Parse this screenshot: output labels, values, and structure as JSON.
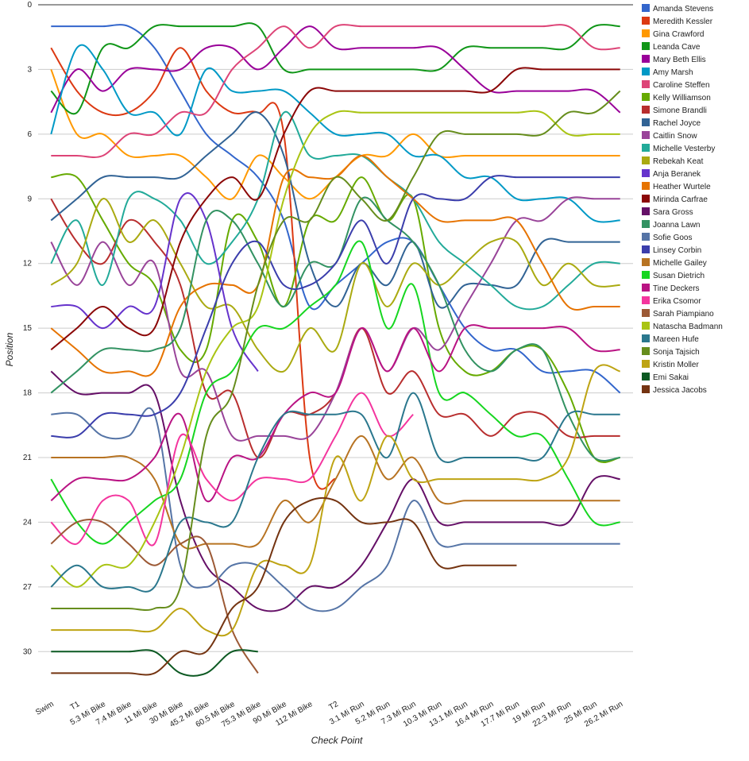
{
  "chart_data": {
    "type": "line",
    "smooth": true,
    "reversed_y": true,
    "grid": true,
    "legend": "right",
    "x_label": "Check Point",
    "y_label": "Position",
    "categories": [
      "Swim",
      "T1",
      "5.3 Mi Bike",
      "7.4 Mi Bike",
      "11 Mi Bike",
      "30 Mi Bike",
      "45.2 Mi Bike",
      "60.5 Mi Bike",
      "75.3 Mi Bike",
      "90 Mi Bike",
      "112 Mi Bike",
      "T2",
      "3.1 Mi Run",
      "5.2 Mi Run",
      "7.3 Mi Run",
      "10.3 Mi Run",
      "13.1 Mi Run",
      "16.4 Mi Run",
      "17.7 Mi Run",
      "19 Mi Run",
      "22.3 Mi Run",
      "25 Mi Run",
      "26.2 Mi Run"
    ],
    "ylim": [
      0,
      31.5
    ],
    "yticks": [
      0,
      3,
      6,
      9,
      12,
      15,
      18,
      21,
      24,
      27,
      30
    ],
    "series": [
      {
        "name": "Amanda Stevens",
        "color": "#3366cc",
        "values": [
          1,
          1,
          1,
          1,
          2,
          4,
          6,
          7,
          8,
          10,
          14,
          13,
          12,
          11,
          11,
          13,
          15,
          16,
          16,
          17,
          17,
          17,
          18
        ]
      },
      {
        "name": "Meredith Kessler",
        "color": "#dc3912",
        "values": [
          2,
          4,
          5,
          5,
          4,
          2,
          4,
          5,
          5,
          6,
          21,
          22,
          null,
          null,
          null,
          null,
          null,
          null,
          null,
          null,
          null,
          null,
          null
        ]
      },
      {
        "name": "Gina Crawford",
        "color": "#ff9900",
        "values": [
          3,
          6,
          6,
          7,
          7,
          7,
          8,
          9,
          7,
          8,
          9,
          8,
          7,
          7,
          6,
          7,
          7,
          7,
          7,
          7,
          7,
          7,
          7
        ]
      },
      {
        "name": "Leanda Cave",
        "color": "#109618",
        "values": [
          4,
          5,
          2,
          2,
          1,
          1,
          1,
          1,
          1,
          3,
          3,
          3,
          3,
          3,
          3,
          3,
          2,
          2,
          2,
          2,
          2,
          1,
          1
        ]
      },
      {
        "name": "Mary Beth Ellis",
        "color": "#990099",
        "values": [
          5,
          3,
          4,
          3,
          3,
          3,
          2,
          2,
          3,
          2,
          1,
          2,
          2,
          2,
          2,
          2,
          3,
          4,
          4,
          4,
          4,
          4,
          5
        ]
      },
      {
        "name": "Amy Marsh",
        "color": "#0099c6",
        "values": [
          6,
          2,
          3,
          5,
          5,
          6,
          3,
          4,
          4,
          4,
          5,
          6,
          6,
          6,
          7,
          7,
          8,
          8,
          9,
          9,
          9,
          10,
          10
        ]
      },
      {
        "name": "Caroline Steffen",
        "color": "#dd4477",
        "values": [
          7,
          7,
          7,
          6,
          6,
          5,
          5,
          3,
          2,
          1,
          2,
          1,
          1,
          1,
          1,
          1,
          1,
          1,
          1,
          1,
          1,
          2,
          2
        ]
      },
      {
        "name": "Kelly Williamson",
        "color": "#66aa00",
        "values": [
          8,
          8,
          10,
          12,
          13,
          16,
          16,
          10,
          11,
          14,
          10,
          10,
          8,
          10,
          9,
          15,
          17,
          17,
          16,
          16,
          18,
          21,
          21
        ]
      },
      {
        "name": "Simone Brandli",
        "color": "#b82e2e",
        "values": [
          9,
          11,
          12,
          10,
          11,
          13,
          18,
          18,
          21,
          19,
          19,
          18,
          15,
          18,
          17,
          19,
          19,
          20,
          19,
          19,
          20,
          20,
          20
        ]
      },
      {
        "name": "Rachel Joyce",
        "color": "#316395",
        "values": [
          10,
          9,
          8,
          8,
          8,
          8,
          7,
          6,
          5,
          7,
          12,
          14,
          12,
          13,
          11,
          14,
          13,
          13,
          13,
          11,
          11,
          11,
          11
        ]
      },
      {
        "name": "Caitlin Snow",
        "color": "#994499",
        "values": [
          11,
          13,
          11,
          13,
          12,
          17,
          17,
          20,
          20,
          20,
          20,
          18,
          15,
          17,
          15,
          16,
          14,
          12,
          10,
          10,
          9,
          9,
          9
        ]
      },
      {
        "name": "Michelle Vesterby",
        "color": "#22aa99",
        "values": [
          12,
          10,
          13,
          9,
          9,
          10,
          12,
          11,
          9,
          5,
          7,
          7,
          7,
          8,
          9,
          11,
          12,
          13,
          14,
          14,
          13,
          12,
          12
        ]
      },
      {
        "name": "Rebekah Keat",
        "color": "#aaaa11",
        "values": [
          13,
          12,
          9,
          11,
          10,
          12,
          14,
          14,
          16,
          17,
          15,
          16,
          12,
          14,
          12,
          13,
          12,
          11,
          11,
          13,
          12,
          13,
          13
        ]
      },
      {
        "name": "Anja Beranek",
        "color": "#6633cc",
        "values": [
          14,
          14,
          15,
          14,
          14,
          9,
          10,
          15,
          17,
          null,
          null,
          null,
          null,
          null,
          null,
          null,
          null,
          null,
          null,
          null,
          null,
          null,
          null
        ]
      },
      {
        "name": "Heather Wurtele",
        "color": "#e67300",
        "values": [
          15,
          16,
          17,
          17,
          17,
          14,
          13,
          13,
          13,
          8,
          8,
          8,
          7,
          8,
          9,
          10,
          10,
          10,
          10,
          12,
          14,
          14,
          14
        ]
      },
      {
        "name": "Mirinda Carfrae",
        "color": "#8b0707",
        "values": [
          16,
          15,
          14,
          15,
          15,
          11,
          9,
          8,
          9,
          6,
          4,
          4,
          4,
          4,
          4,
          4,
          4,
          4,
          3,
          3,
          3,
          3,
          3
        ]
      },
      {
        "name": "Sara Gross",
        "color": "#651067",
        "values": [
          17,
          18,
          18,
          18,
          18,
          23,
          26,
          27,
          28,
          28,
          27,
          27,
          26,
          24,
          22,
          24,
          24,
          24,
          24,
          24,
          24,
          22,
          22
        ]
      },
      {
        "name": "Joanna Lawn",
        "color": "#329262",
        "values": [
          18,
          17,
          16,
          16,
          16,
          15,
          10,
          10,
          12,
          14,
          12,
          12,
          9,
          10,
          11,
          13,
          16,
          17,
          16,
          16,
          19,
          21,
          21
        ]
      },
      {
        "name": "Sofie Goos",
        "color": "#5574a6",
        "values": [
          19,
          19,
          20,
          20,
          19,
          26,
          27,
          26,
          26,
          27,
          28,
          28,
          27,
          26,
          23,
          25,
          25,
          25,
          25,
          25,
          25,
          25,
          25
        ]
      },
      {
        "name": "Linsey Corbin",
        "color": "#3b3eac",
        "values": [
          20,
          20,
          19,
          19,
          19,
          18,
          15,
          12,
          11,
          13,
          13,
          12,
          10,
          12,
          9,
          9,
          9,
          8,
          8,
          8,
          8,
          8,
          8
        ]
      },
      {
        "name": "Michelle Gailey",
        "color": "#b77322",
        "values": [
          21,
          21,
          21,
          21,
          22,
          25,
          25,
          25,
          25,
          23,
          24,
          22,
          20,
          22,
          21,
          23,
          23,
          23,
          23,
          23,
          23,
          23,
          23
        ]
      },
      {
        "name": "Susan Dietrich",
        "color": "#16d620",
        "values": [
          22,
          24,
          25,
          24,
          23,
          22,
          18,
          17,
          15,
          15,
          14,
          13,
          11,
          15,
          13,
          18,
          18,
          19,
          20,
          20,
          22,
          24,
          24
        ]
      },
      {
        "name": "Tine Deckers",
        "color": "#b91383",
        "values": [
          23,
          22,
          22,
          22,
          21,
          19,
          23,
          21,
          21,
          19,
          18,
          18,
          15,
          17,
          15,
          17,
          15,
          15,
          15,
          15,
          15,
          16,
          16
        ]
      },
      {
        "name": "Erika Csomor",
        "color": "#f4359e",
        "values": [
          24,
          25,
          23,
          23,
          25,
          20,
          22,
          23,
          22,
          22,
          22,
          20,
          18,
          20,
          19,
          null,
          null,
          null,
          null,
          null,
          null,
          null,
          null
        ]
      },
      {
        "name": "Sarah Piampiano",
        "color": "#9c5935",
        "values": [
          25,
          24,
          24,
          25,
          26,
          25,
          25,
          29,
          31,
          null,
          null,
          null,
          null,
          null,
          null,
          null,
          null,
          null,
          null,
          null,
          null,
          null,
          null
        ]
      },
      {
        "name": "Natascha Badmann",
        "color": "#a9c413",
        "values": [
          26,
          27,
          26,
          26,
          24,
          21,
          17,
          15,
          14,
          9,
          6,
          5,
          5,
          5,
          5,
          5,
          5,
          5,
          5,
          5,
          6,
          6,
          6
        ]
      },
      {
        "name": "Mareen Hufe",
        "color": "#2a778d",
        "values": [
          27,
          26,
          27,
          27,
          27,
          24,
          24,
          24,
          21,
          19,
          19,
          19,
          19,
          21,
          18,
          21,
          21,
          21,
          21,
          21,
          19,
          19,
          19
        ]
      },
      {
        "name": "Sonja Tajsich",
        "color": "#668d1c",
        "values": [
          28,
          28,
          28,
          28,
          28,
          27,
          20,
          18,
          13,
          10,
          10,
          8,
          9,
          10,
          8,
          6,
          6,
          6,
          6,
          6,
          5,
          5,
          4
        ]
      },
      {
        "name": "Kristin Moller",
        "color": "#bea413",
        "values": [
          29,
          29,
          29,
          29,
          29,
          28,
          29,
          29,
          26,
          26,
          26,
          21,
          23,
          20,
          22,
          22,
          22,
          22,
          22,
          22,
          21,
          17,
          17
        ]
      },
      {
        "name": "Emi Sakai",
        "color": "#0c5922",
        "values": [
          30,
          30,
          30,
          30,
          30,
          31,
          31,
          30,
          30,
          null,
          null,
          null,
          null,
          null,
          null,
          null,
          null,
          null,
          null,
          null,
          null,
          null,
          null
        ]
      },
      {
        "name": "Jessica Jacobs",
        "color": "#743411",
        "values": [
          31,
          31,
          31,
          31,
          31,
          30,
          30,
          28,
          27,
          24,
          23,
          23,
          24,
          24,
          24,
          26,
          26,
          26,
          26,
          null,
          null,
          null,
          null
        ]
      }
    ]
  }
}
